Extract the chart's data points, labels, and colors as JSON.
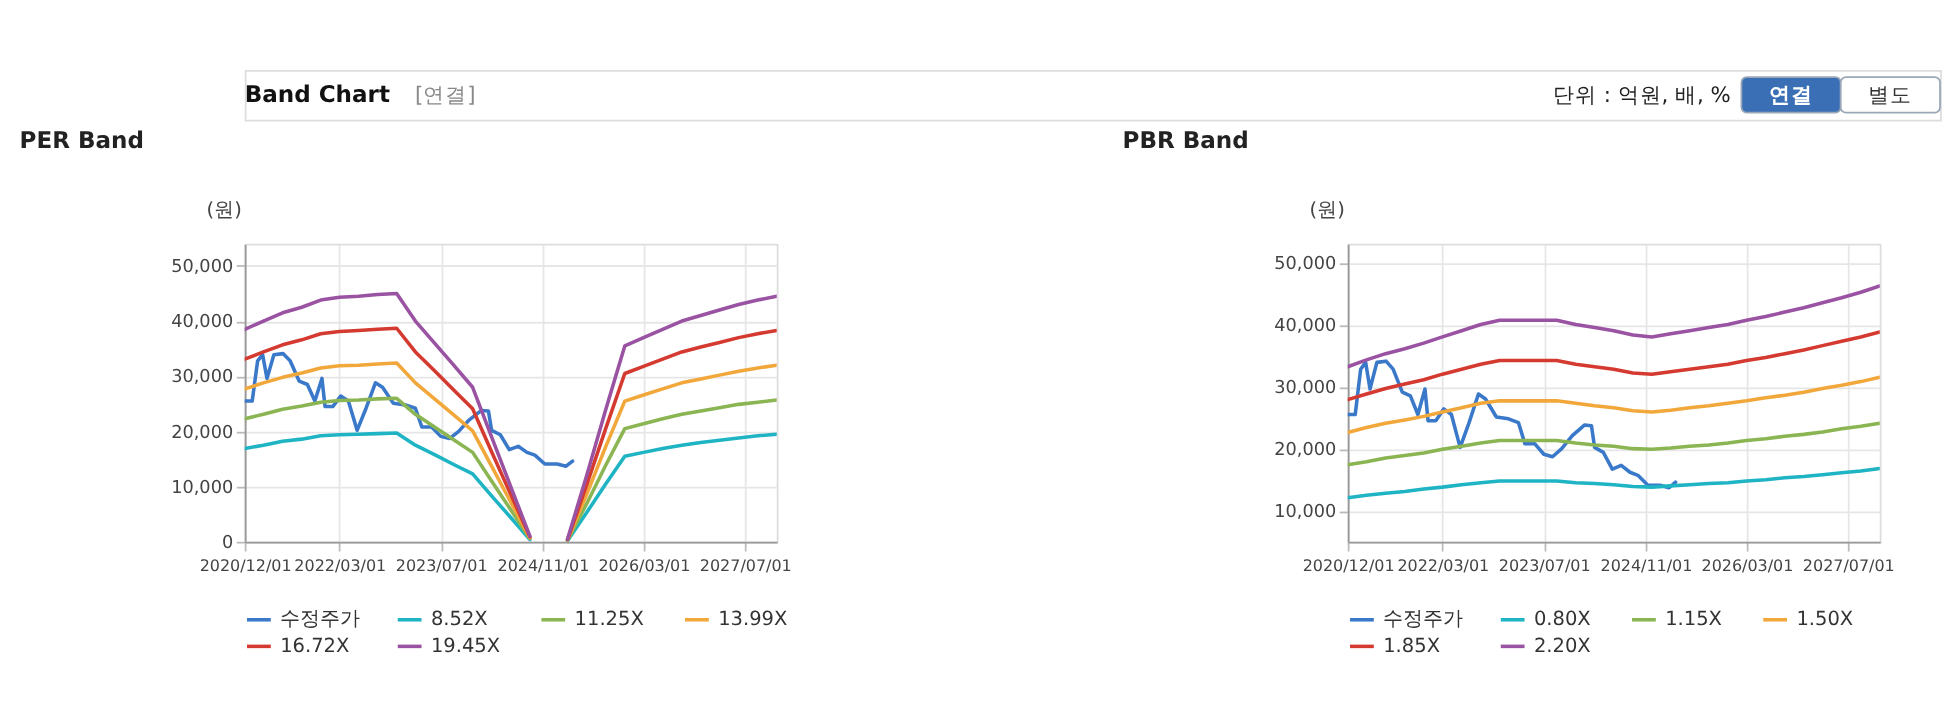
{
  "chart_data": [
    {
      "type": "line",
      "title": "PER Band",
      "ylabel": "(원)",
      "annotations": [
        "Band Chart",
        "[연결]",
        "단위 : 억원, 배, %",
        "연결",
        "별도"
      ],
      "x": [
        "2020-12",
        "2021-03",
        "2021-06",
        "2021-09",
        "2021-12",
        "2022-03",
        "2022-06",
        "2022-09",
        "2022-12",
        "2023-03",
        "2023-06",
        "2023-09",
        "2023-12",
        "2024-03",
        "2024-06",
        "2024-09",
        "2024-12",
        "2025-03",
        "2025-06",
        "2025-09",
        "2025-12",
        "2026-03",
        "2026-06",
        "2026-09",
        "2026-12",
        "2027-03",
        "2027-06",
        "2027-09",
        "2027-12"
      ],
      "xlim": [
        "2020-12",
        "2027-12"
      ],
      "xticks": [
        {
          "value": "2020-12-01",
          "label": "2020/12/01"
        },
        {
          "value": "2022-03-01",
          "label": "2022/03/01"
        },
        {
          "value": "2023-07-01",
          "label": "2023/07/01"
        },
        {
          "value": "2024-11-01",
          "label": "2024/11/01"
        },
        {
          "value": "2026-03-01",
          "label": "2026/03/01"
        },
        {
          "value": "2027-07-01",
          "label": "2027/07/01"
        }
      ],
      "ylim": [
        0,
        54000
      ],
      "yticks": [
        {
          "value": 0,
          "label": "0"
        },
        {
          "value": 10000,
          "label": "10,000"
        },
        {
          "value": 20000,
          "label": "20,000"
        },
        {
          "value": 30000,
          "label": "30,000"
        },
        {
          "value": 40000,
          "label": "40,000"
        },
        {
          "value": 50000,
          "label": "50,000"
        }
      ],
      "grid": true,
      "legend": "bottom",
      "line_style": "solid",
      "marker": "none",
      "series": [
        {
          "name": "수정주가",
          "color": "#3a78c9",
          "x": [
            "2020-12-01",
            "2021-01-06",
            "2021-02-01",
            "2021-02-25",
            "2021-03-18",
            "2021-04-20",
            "2021-06-03",
            "2021-07-07",
            "2021-08-20",
            "2021-09-28",
            "2021-11-03",
            "2021-12-07",
            "2021-12-22",
            "2022-01-28",
            "2022-03-07",
            "2022-04-13",
            "2022-05-25",
            "2022-07-07",
            "2022-08-21",
            "2022-09-24",
            "2022-11-15",
            "2023-01-12",
            "2023-03-01",
            "2023-04-01",
            "2023-05-18",
            "2023-07-01",
            "2023-08-12",
            "2023-09-25",
            "2023-11-15",
            "2024-01-12",
            "2024-02-15",
            "2024-03-01",
            "2024-04-12",
            "2024-05-25",
            "2024-07-07",
            "2024-08-18",
            "2024-09-25",
            "2024-11-12",
            "2025-01-10",
            "2025-02-22",
            "2025-03-25"
          ],
          "values": [
            25500,
            25500,
            32800,
            33900,
            29600,
            33900,
            34100,
            32800,
            29100,
            28500,
            25500,
            29600,
            24500,
            24500,
            26400,
            25500,
            20200,
            24200,
            28800,
            28000,
            25100,
            24800,
            24200,
            20800,
            20800,
            19100,
            18700,
            20000,
            22100,
            23800,
            23700,
            20200,
            19400,
            16700,
            17300,
            16200,
            15700,
            14100,
            14100,
            13700,
            14600
          ]
        },
        {
          "name": "8.52X",
          "color": "#1fb4c4",
          "values": [
            16900,
            17500,
            18200,
            18600,
            19200,
            19400,
            19500,
            19600,
            19700,
            17500,
            15800,
            14000,
            12300,
            8300,
            4400,
            400,
            null,
            200,
            5300,
            10500,
            15500,
            16200,
            16900,
            17500,
            18000,
            18400,
            18800,
            19200,
            19500
          ]
        },
        {
          "name": "11.25X",
          "color": "#8bb552",
          "values": [
            22300,
            23100,
            24000,
            24600,
            25300,
            25600,
            25700,
            25900,
            26000,
            23100,
            20800,
            18500,
            16200,
            11000,
            5800,
            600,
            null,
            300,
            6900,
            13900,
            20500,
            21400,
            22300,
            23100,
            23700,
            24300,
            24900,
            25300,
            25700
          ]
        },
        {
          "name": "13.99X",
          "color": "#f2a73b",
          "values": [
            27700,
            28800,
            29800,
            30600,
            31500,
            31900,
            32000,
            32200,
            32400,
            28800,
            25900,
            23000,
            20100,
            13700,
            7200,
            700,
            null,
            400,
            8600,
            17300,
            25500,
            26600,
            27700,
            28800,
            29500,
            30200,
            30900,
            31500,
            32000
          ]
        },
        {
          "name": "16.72X",
          "color": "#d43a30",
          "values": [
            33100,
            34400,
            35700,
            36600,
            37700,
            38100,
            38300,
            38500,
            38700,
            34400,
            31000,
            27500,
            24100,
            16300,
            8600,
            900,
            null,
            400,
            10300,
            20600,
            30500,
            31800,
            33100,
            34400,
            35300,
            36100,
            37000,
            37700,
            38300
          ]
        },
        {
          "name": "19.45X",
          "color": "#9a52a2",
          "values": [
            38500,
            40000,
            41500,
            42500,
            43800,
            44300,
            44500,
            44800,
            45000,
            40000,
            36000,
            32000,
            28000,
            19000,
            10000,
            1000,
            null,
            500,
            12000,
            24000,
            35500,
            37000,
            38500,
            40000,
            41000,
            42000,
            43000,
            43800,
            44500
          ]
        }
      ]
    },
    {
      "type": "line",
      "title": "PBR Band",
      "ylabel": "(원)",
      "x": [
        "2020-12",
        "2021-03",
        "2021-06",
        "2021-09",
        "2021-12",
        "2022-03",
        "2022-06",
        "2022-09",
        "2022-12",
        "2023-03",
        "2023-06",
        "2023-09",
        "2023-12",
        "2024-03",
        "2024-06",
        "2024-09",
        "2024-12",
        "2025-03",
        "2025-06",
        "2025-09",
        "2025-12",
        "2026-03",
        "2026-06",
        "2026-09",
        "2026-12",
        "2027-03",
        "2027-06",
        "2027-09",
        "2027-12"
      ],
      "xlim": [
        "2020-12",
        "2027-12"
      ],
      "xticks": [
        {
          "value": "2020-12-01",
          "label": "2020/12/01"
        },
        {
          "value": "2022-03-01",
          "label": "2022/03/01"
        },
        {
          "value": "2023-07-01",
          "label": "2023/07/01"
        },
        {
          "value": "2024-11-01",
          "label": "2024/11/01"
        },
        {
          "value": "2026-03-01",
          "label": "2026/03/01"
        },
        {
          "value": "2027-07-01",
          "label": "2027/07/01"
        }
      ],
      "ylim": [
        5000,
        53000
      ],
      "yticks": [
        {
          "value": 10000,
          "label": "10,000"
        },
        {
          "value": 20000,
          "label": "20,000"
        },
        {
          "value": 30000,
          "label": "30,000"
        },
        {
          "value": 40000,
          "label": "40,000"
        },
        {
          "value": 50000,
          "label": "50,000"
        }
      ],
      "grid": true,
      "legend": "bottom",
      "line_style": "solid",
      "marker": "none",
      "series": [
        {
          "name": "수정주가",
          "color": "#3a78c9",
          "x": [
            "2020-12-01",
            "2021-01-06",
            "2021-02-01",
            "2021-02-25",
            "2021-03-18",
            "2021-04-20",
            "2021-06-03",
            "2021-07-07",
            "2021-08-20",
            "2021-09-28",
            "2021-11-03",
            "2021-12-07",
            "2021-12-22",
            "2022-01-28",
            "2022-03-07",
            "2022-04-13",
            "2022-05-25",
            "2022-07-07",
            "2022-08-21",
            "2022-09-24",
            "2022-11-15",
            "2023-01-12",
            "2023-03-01",
            "2023-04-01",
            "2023-05-18",
            "2023-07-01",
            "2023-08-12",
            "2023-09-25",
            "2023-11-15",
            "2024-01-12",
            "2024-02-15",
            "2024-03-01",
            "2024-04-12",
            "2024-05-25",
            "2024-07-07",
            "2024-08-18",
            "2024-09-25",
            "2024-11-12",
            "2025-01-10",
            "2025-02-22",
            "2025-03-25"
          ],
          "values": [
            25500,
            25500,
            32800,
            33900,
            29600,
            33900,
            34100,
            32800,
            29100,
            28500,
            25500,
            29600,
            24500,
            24500,
            26400,
            25500,
            20200,
            24200,
            28800,
            28000,
            25100,
            24800,
            24200,
            20800,
            20800,
            19100,
            18700,
            20000,
            22100,
            23800,
            23700,
            20200,
            19400,
            16700,
            17300,
            16200,
            15700,
            14100,
            14100,
            13700,
            14600
          ]
        },
        {
          "name": "0.80X",
          "color": "#1fb4c4",
          "values": [
            12100,
            12500,
            12800,
            13100,
            13500,
            13800,
            14200,
            14500,
            14800,
            14800,
            14800,
            14800,
            14500,
            14400,
            14200,
            13900,
            13800,
            14000,
            14200,
            14400,
            14500,
            14800,
            15000,
            15300,
            15500,
            15800,
            16100,
            16400,
            16800
          ]
        },
        {
          "name": "1.15X",
          "color": "#8bb552",
          "values": [
            17400,
            17900,
            18500,
            18900,
            19300,
            19900,
            20400,
            20900,
            21300,
            21300,
            21300,
            21300,
            20900,
            20600,
            20400,
            20000,
            19900,
            20100,
            20400,
            20600,
            20900,
            21300,
            21600,
            22000,
            22300,
            22700,
            23200,
            23600,
            24100
          ]
        },
        {
          "name": "1.50X",
          "color": "#f2a73b",
          "values": [
            22600,
            23400,
            24100,
            24600,
            25200,
            25900,
            26600,
            27300,
            27700,
            27700,
            27700,
            27700,
            27300,
            26900,
            26600,
            26100,
            25900,
            26200,
            26600,
            26900,
            27300,
            27700,
            28200,
            28600,
            29100,
            29700,
            30200,
            30800,
            31500
          ]
        },
        {
          "name": "1.85X",
          "color": "#d43a30",
          "values": [
            27900,
            28800,
            29700,
            30400,
            31100,
            32000,
            32800,
            33600,
            34200,
            34200,
            34200,
            34200,
            33600,
            33200,
            32800,
            32200,
            32000,
            32400,
            32800,
            33200,
            33600,
            34200,
            34700,
            35300,
            35900,
            36600,
            37300,
            38000,
            38800
          ]
        },
        {
          "name": "2.20X",
          "color": "#9a52a2",
          "values": [
            33200,
            34300,
            35300,
            36100,
            37000,
            38000,
            39000,
            40000,
            40700,
            40700,
            40700,
            40700,
            40000,
            39500,
            39000,
            38300,
            38000,
            38500,
            39000,
            39500,
            40000,
            40700,
            41300,
            42000,
            42700,
            43500,
            44300,
            45200,
            46200
          ]
        }
      ]
    }
  ]
}
